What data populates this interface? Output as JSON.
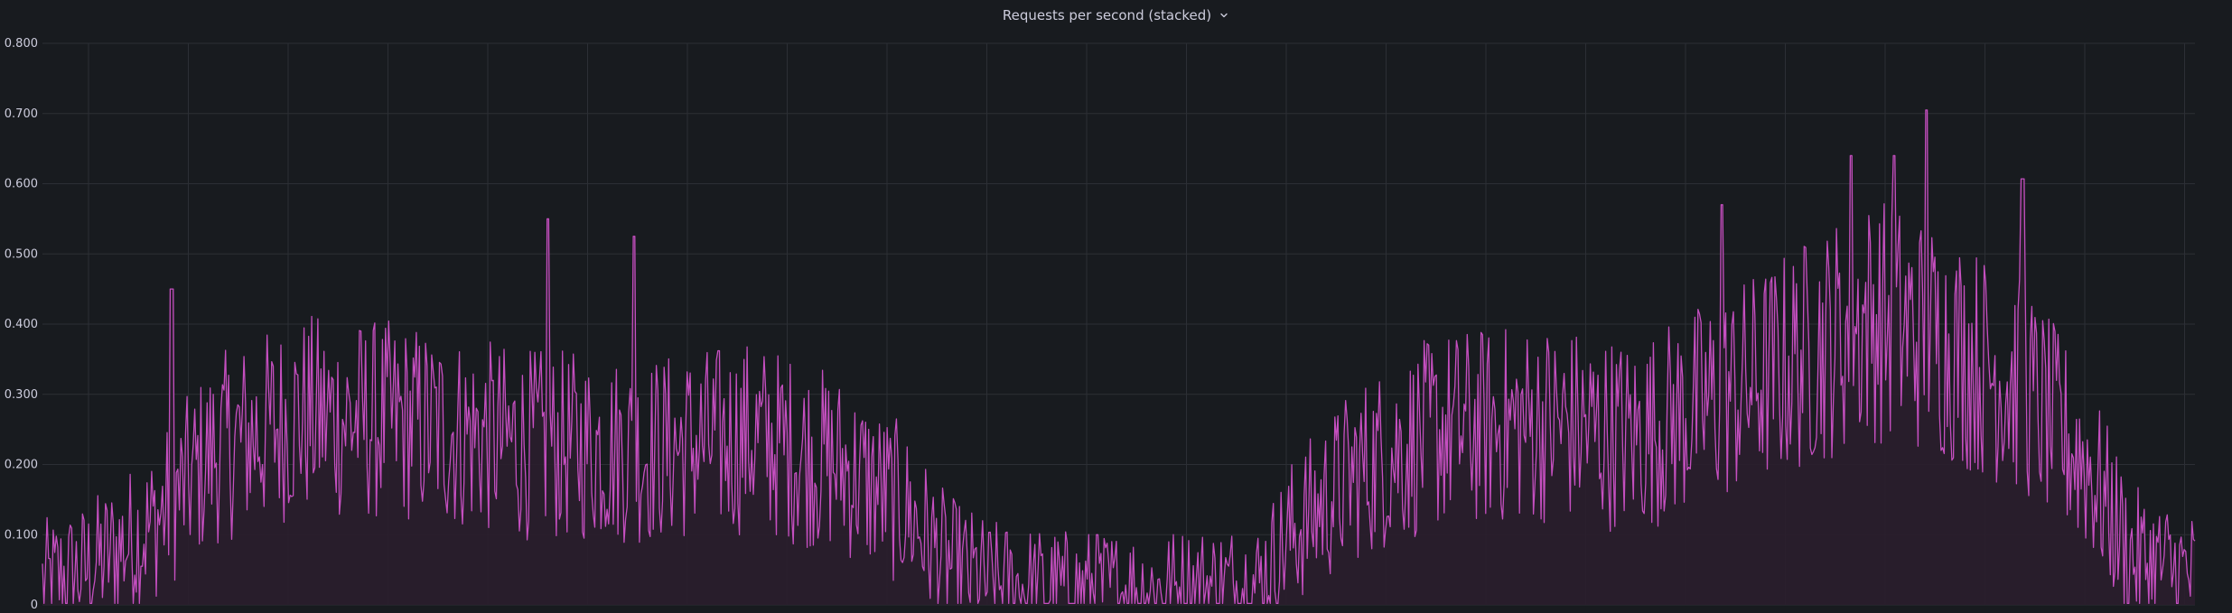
{
  "panel": {
    "title": "Requests per second (stacked)"
  },
  "icons": {
    "title_menu": "chevron-down-icon"
  },
  "colors": {
    "background": "#181b1f",
    "grid": "#2c2f35",
    "series_line": "#c54fc0",
    "series_fill": "#2a1e2c",
    "text": "#ccccdc"
  },
  "chart_data": {
    "type": "area",
    "title": "Requests per second (stacked)",
    "xlabel": "",
    "ylabel": "",
    "ylim": [
      0,
      0.8
    ],
    "y_ticks": [
      "0",
      "0.100",
      "0.200",
      "0.300",
      "0.400",
      "0.500",
      "0.600",
      "0.700",
      "0.800"
    ],
    "grid": true,
    "legend": "none",
    "series": [
      {
        "color": "#c54fc0",
        "envelope_x": [
          0,
          0.02,
          0.05,
          0.08,
          0.12,
          0.17,
          0.22,
          0.28,
          0.33,
          0.37,
          0.4,
          0.42,
          0.44,
          0.47,
          0.52,
          0.565,
          0.58,
          0.61,
          0.65,
          0.7,
          0.74,
          0.79,
          0.82,
          0.85,
          0.88,
          0.92,
          0.95,
          0.97,
          1.0
        ],
        "envelope_y": [
          0.03,
          0.05,
          0.11,
          0.22,
          0.27,
          0.26,
          0.23,
          0.22,
          0.24,
          0.2,
          0.14,
          0.06,
          0.03,
          0.02,
          0.02,
          0.03,
          0.1,
          0.19,
          0.25,
          0.26,
          0.24,
          0.31,
          0.36,
          0.41,
          0.38,
          0.31,
          0.2,
          0.07,
          0.04
        ],
        "amplitude": 0.075,
        "spikes": [
          [
            0.235,
            0.55
          ],
          [
            0.275,
            0.525
          ],
          [
            0.875,
            0.705
          ],
          [
            0.78,
            0.57
          ],
          [
            0.84,
            0.64
          ],
          [
            0.86,
            0.64
          ],
          [
            0.92,
            0.607
          ],
          [
            0.49,
            0.1
          ],
          [
            0.06,
            0.45
          ]
        ]
      }
    ]
  }
}
